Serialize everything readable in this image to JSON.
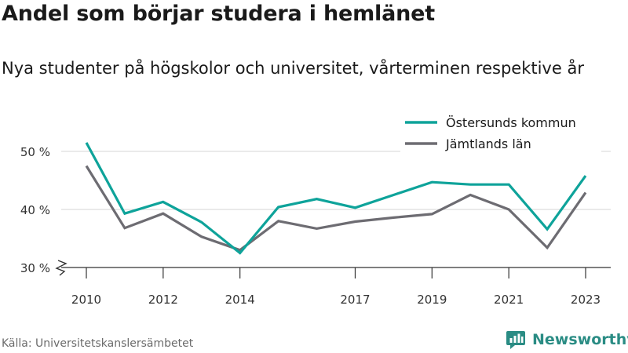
{
  "title": "Andel som börjar studera i hemlänet",
  "subtitle": "Nya studenter på högskolor och universitet, vårterminen respektive år",
  "source": "Källa: Universitetskanslersämbetet",
  "brand": "Newsworthy",
  "colors": {
    "brand": "#2a8c84",
    "grid": "#d6d6d6",
    "axis": "#333333"
  },
  "chart_data": {
    "type": "line",
    "x": [
      2010,
      2011,
      2012,
      2013,
      2014,
      2015,
      2016,
      2017,
      2018,
      2019,
      2020,
      2021,
      2022,
      2023
    ],
    "x_tick_values": [
      2010,
      2012,
      2014,
      2017,
      2019,
      2021,
      2023
    ],
    "x_tick_labels": [
      "2010",
      "2012",
      "2014",
      "2017",
      "2019",
      "2021",
      "2023"
    ],
    "xlim": [
      2010,
      2023
    ],
    "y_tick_values": [
      30,
      40,
      50
    ],
    "y_tick_labels": [
      "30 %",
      "40 %",
      "50 %"
    ],
    "ylim": [
      30,
      50
    ],
    "grid": true,
    "y_axis_broken": true,
    "legend_position": "top-right",
    "series": [
      {
        "name": "Östersunds kommun",
        "color": "#0ea39a",
        "values": [
          51.5,
          39.3,
          41.3,
          37.8,
          32.5,
          40.4,
          41.8,
          40.3,
          42.5,
          44.7,
          44.3,
          44.3,
          36.6,
          45.8
        ]
      },
      {
        "name": "Jämtlands län",
        "color": "#6d6c72",
        "values": [
          47.5,
          36.8,
          39.3,
          35.3,
          33.0,
          38.0,
          36.7,
          37.9,
          38.6,
          39.2,
          42.5,
          40.0,
          33.4,
          42.9
        ]
      }
    ]
  }
}
